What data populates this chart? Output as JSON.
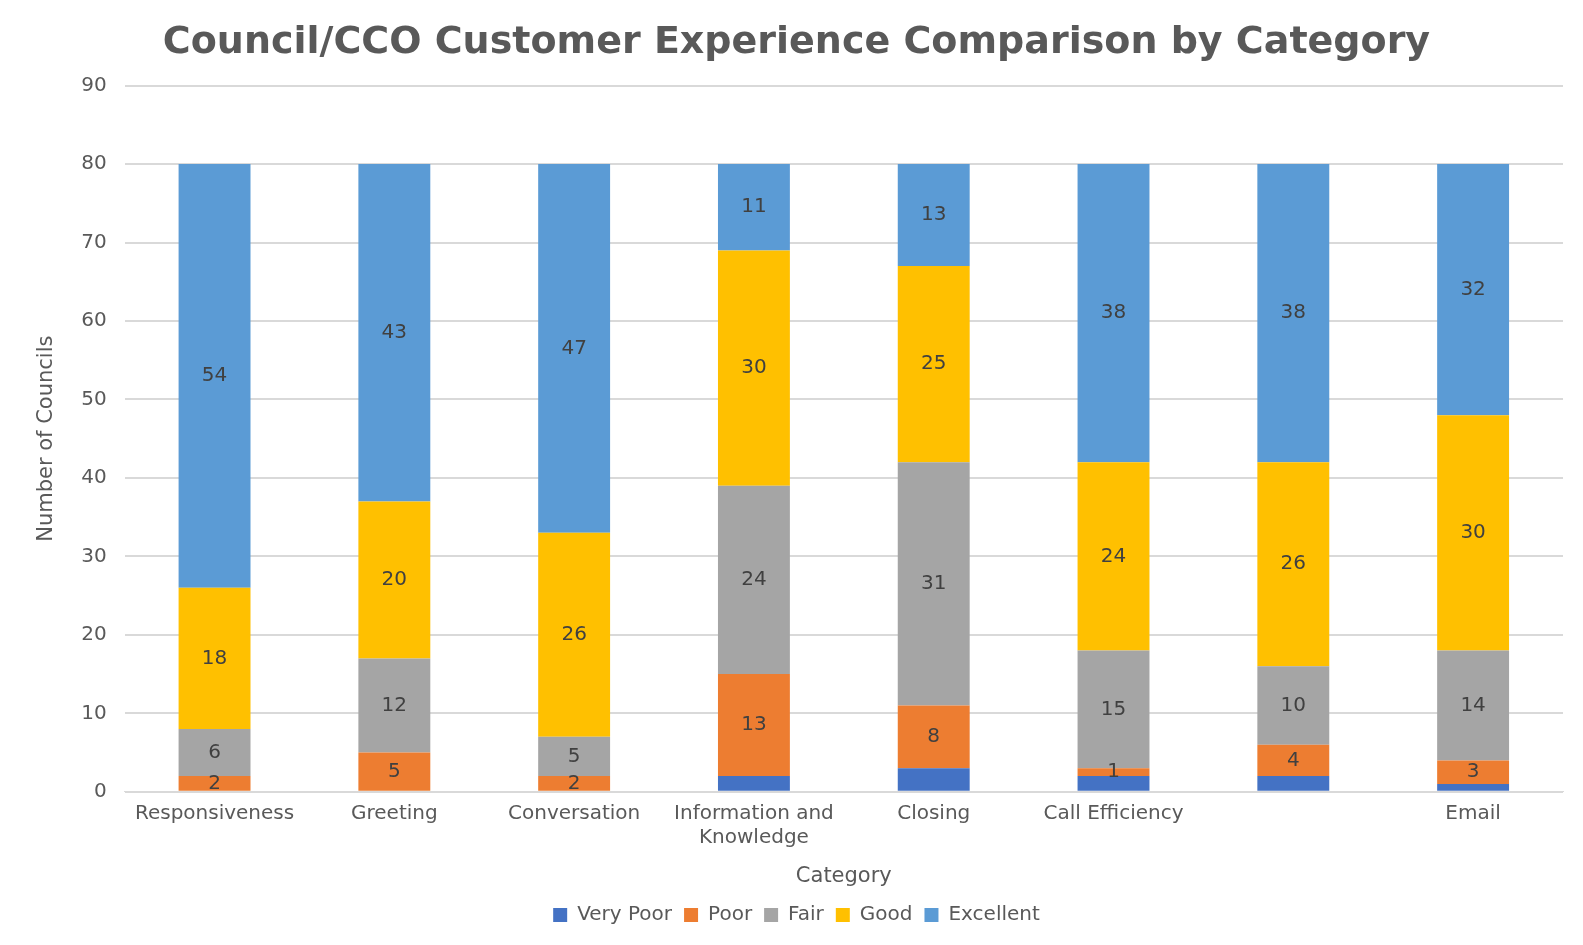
{
  "chart_data": {
    "type": "bar",
    "title": "Council/CCO Customer Experience Comparison by Category",
    "xlabel": "Category",
    "ylabel": "Number of Councils",
    "categories": [
      "Responsiveness",
      "Greeting",
      "Conversation",
      "Information and Knowledge",
      "Closing",
      "Call Efficiency",
      null,
      "Email"
    ],
    "stacked": true,
    "ylim": [
      0,
      90
    ],
    "yticks": [
      0,
      10,
      20,
      30,
      40,
      50,
      60,
      70,
      80,
      90
    ],
    "grid": "y",
    "legend": "bottom",
    "series": [
      {
        "name": "Very Poor",
        "color": "#4472c4",
        "values": [
          0,
          0,
          0,
          2,
          3,
          2,
          2,
          1
        ],
        "value_labels": [
          null,
          null,
          null,
          null,
          null,
          null,
          null,
          null
        ]
      },
      {
        "name": "Poor",
        "color": "#ed7d31",
        "values": [
          2,
          5,
          2,
          13,
          8,
          1,
          4,
          3
        ],
        "value_labels": [
          "2",
          "5",
          "2",
          "13",
          "8",
          "1",
          "4",
          "3"
        ]
      },
      {
        "name": "Fair",
        "color": "#a5a5a5",
        "values": [
          6,
          12,
          5,
          24,
          31,
          15,
          10,
          14
        ],
        "value_labels": [
          "6",
          "12",
          "5",
          "24",
          "31",
          "15",
          "10",
          "14"
        ]
      },
      {
        "name": "Good",
        "color": "#ffc000",
        "values": [
          18,
          20,
          26,
          30,
          25,
          24,
          26,
          30
        ],
        "value_labels": [
          "18",
          "20",
          "26",
          "30",
          "25",
          "24",
          "26",
          "30"
        ]
      },
      {
        "name": "Excellent",
        "color": "#5b9bd5",
        "values": [
          54,
          43,
          47,
          11,
          13,
          38,
          38,
          32
        ],
        "value_labels": [
          "54",
          "43",
          "47",
          "11",
          "13",
          "38",
          "38",
          "32"
        ]
      }
    ]
  }
}
